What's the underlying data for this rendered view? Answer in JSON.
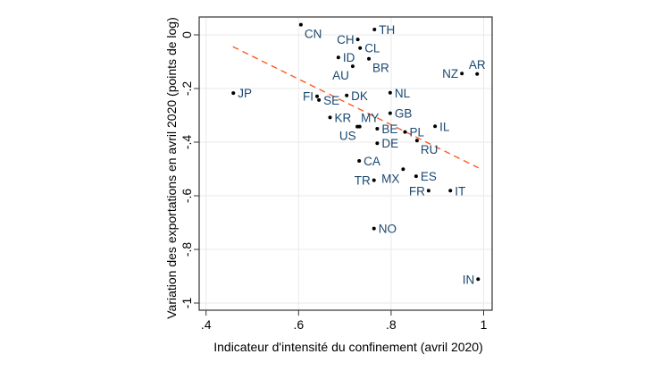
{
  "chart_data": {
    "type": "scatter",
    "xlabel": "Indicateur d'intensité du confinement (avril 2020)",
    "ylabel": "Variation des exportations en avril 2020 (points de log)",
    "xlim": [
      0.4,
      1.0
    ],
    "ylim": [
      -1.0,
      0.0
    ],
    "xticks": [
      0.4,
      0.6,
      0.8,
      1.0
    ],
    "xtick_labels": [
      ".4",
      ".6",
      ".8",
      "1"
    ],
    "yticks": [
      0,
      -0.2,
      -0.4,
      -0.6,
      -0.8,
      -1
    ],
    "ytick_labels": [
      "0",
      "-.2",
      "-.4",
      "-.6",
      "-.8",
      "-1"
    ],
    "grid": true,
    "colors": {
      "point": "#000000",
      "label": "#1a476f",
      "trend": "#ff5a1f",
      "grid": "#eaeaea"
    },
    "points": [
      {
        "label": "CN",
        "x": 0.605,
        "y": 0.038
      },
      {
        "label": "TH",
        "x": 0.764,
        "y": 0.02
      },
      {
        "label": "CH",
        "x": 0.728,
        "y": -0.017
      },
      {
        "label": "CL",
        "x": 0.733,
        "y": -0.049
      },
      {
        "label": "ID",
        "x": 0.686,
        "y": -0.084
      },
      {
        "label": "BR",
        "x": 0.752,
        "y": -0.089
      },
      {
        "label": "AU",
        "x": 0.717,
        "y": -0.117
      },
      {
        "label": "NZ",
        "x": 0.953,
        "y": -0.144,
        "labelPos": "left"
      },
      {
        "label": "AR",
        "x": 0.986,
        "y": -0.146
      },
      {
        "label": "JP",
        "x": 0.459,
        "y": -0.217
      },
      {
        "label": "NL",
        "x": 0.798,
        "y": -0.216
      },
      {
        "label": "FI",
        "x": 0.64,
        "y": -0.229,
        "labelPos": "left"
      },
      {
        "label": "SE",
        "x": 0.644,
        "y": -0.243
      },
      {
        "label": "DK",
        "x": 0.704,
        "y": -0.226
      },
      {
        "label": "GB",
        "x": 0.798,
        "y": -0.292
      },
      {
        "label": "KR",
        "x": 0.668,
        "y": -0.308
      },
      {
        "label": "MY",
        "x": 0.727,
        "y": -0.342,
        "labelPos": "left"
      },
      {
        "label": "US",
        "x": 0.732,
        "y": -0.342
      },
      {
        "label": "BE",
        "x": 0.77,
        "y": -0.35
      },
      {
        "label": "PL",
        "x": 0.83,
        "y": -0.362
      },
      {
        "label": "IL",
        "x": 0.895,
        "y": -0.341
      },
      {
        "label": "RU",
        "x": 0.856,
        "y": -0.394
      },
      {
        "label": "DE",
        "x": 0.77,
        "y": -0.404
      },
      {
        "label": "CA",
        "x": 0.731,
        "y": -0.47
      },
      {
        "label": "MX",
        "x": 0.826,
        "y": -0.501
      },
      {
        "label": "ES",
        "x": 0.854,
        "y": -0.527
      },
      {
        "label": "TR",
        "x": 0.763,
        "y": -0.542
      },
      {
        "label": "FR",
        "x": 0.881,
        "y": -0.581
      },
      {
        "label": "IT",
        "x": 0.928,
        "y": -0.581
      },
      {
        "label": "NO",
        "x": 0.763,
        "y": -0.722
      },
      {
        "label": "IN",
        "x": 0.988,
        "y": -0.911
      }
    ],
    "trend_line": {
      "style": "dashed",
      "x": [
        0.458,
        0.989
      ],
      "y": [
        -0.044,
        -0.496
      ]
    }
  }
}
